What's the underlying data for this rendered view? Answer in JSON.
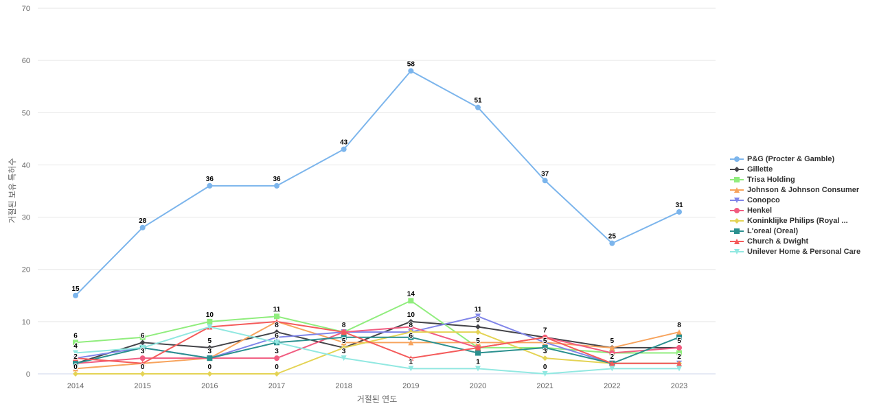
{
  "chart_data": {
    "type": "line",
    "x": [
      2014,
      2015,
      2016,
      2017,
      2018,
      2019,
      2020,
      2021,
      2022,
      2023
    ],
    "xlabel": "거절된 연도",
    "ylabel": "거절된 보유 특허수",
    "ylim": [
      0,
      70
    ],
    "yticks": [
      0,
      10,
      20,
      30,
      40,
      50,
      60,
      70
    ],
    "grid": true,
    "legend_position": "right",
    "grid_color": "#e6e6e6",
    "axis_line_color": "#ccd6eb",
    "tick_label_color": "#666666",
    "data_label_color": "#000000",
    "series": [
      {
        "name": "P&G (Procter & Gamble)",
        "color": "#7cb5ec",
        "marker": "circle",
        "values": [
          15,
          28,
          36,
          36,
          43,
          58,
          51,
          37,
          25,
          31
        ],
        "labels_visible": [
          1,
          1,
          1,
          1,
          1,
          1,
          1,
          1,
          1,
          1
        ]
      },
      {
        "name": "Gillette",
        "color": "#434348",
        "marker": "diamond",
        "values": [
          2,
          6,
          5,
          8,
          5,
          10,
          9,
          7,
          5,
          5
        ],
        "labels_visible": [
          1,
          1,
          1,
          1,
          1,
          1,
          1,
          0,
          1,
          0
        ]
      },
      {
        "name": "Trisa Holding",
        "color": "#90ed7d",
        "marker": "square",
        "values": [
          6,
          7,
          10,
          11,
          8,
          14,
          5,
          5,
          4,
          4
        ],
        "labels_visible": [
          1,
          0,
          1,
          1,
          0,
          1,
          1,
          0,
          0,
          0
        ]
      },
      {
        "name": "Johnson & Johnson Consumer",
        "color": "#f7a35c",
        "marker": "triangle",
        "values": [
          1,
          2,
          3,
          10,
          6,
          6,
          6,
          6,
          5,
          8
        ],
        "labels_visible": [
          0,
          0,
          0,
          0,
          0,
          1,
          0,
          0,
          0,
          1
        ]
      },
      {
        "name": "Conopco",
        "color": "#8085e9",
        "marker": "triangle-down",
        "values": [
          3,
          5,
          3,
          7,
          8,
          8,
          11,
          6,
          2,
          2
        ],
        "labels_visible": [
          0,
          0,
          0,
          0,
          0,
          1,
          1,
          0,
          0,
          0
        ]
      },
      {
        "name": "Henkel",
        "color": "#f15c80",
        "marker": "circle",
        "values": [
          2,
          3,
          3,
          3,
          8,
          9,
          5,
          7,
          4,
          5
        ],
        "labels_visible": [
          0,
          1,
          0,
          1,
          0,
          0,
          0,
          1,
          0,
          1
        ]
      },
      {
        "name": "Koninklijke Philips (Royal ...",
        "color": "#e4d354",
        "marker": "diamond",
        "values": [
          0,
          0,
          0,
          0,
          5,
          8,
          8,
          3,
          2,
          2
        ],
        "labels_visible": [
          1,
          1,
          1,
          1,
          0,
          0,
          0,
          1,
          0,
          0
        ]
      },
      {
        "name": "L'oreal (Oreal)",
        "color": "#2b908f",
        "marker": "square",
        "values": [
          2,
          5,
          3,
          6,
          7,
          7,
          4,
          5,
          2,
          7
        ],
        "labels_visible": [
          0,
          0,
          1,
          1,
          0,
          0,
          0,
          1,
          1,
          0
        ]
      },
      {
        "name": "Church & Dwight",
        "color": "#f45b5b",
        "marker": "triangle",
        "values": [
          3,
          2,
          9,
          10,
          8,
          3,
          5,
          7,
          2,
          2
        ],
        "labels_visible": [
          0,
          0,
          0,
          0,
          1,
          0,
          0,
          0,
          0,
          1
        ]
      },
      {
        "name": "Unilever Home & Personal Care",
        "color": "#91e8e1",
        "marker": "triangle-down",
        "values": [
          4,
          5,
          9,
          6,
          3,
          1,
          1,
          0,
          1,
          1
        ],
        "labels_visible": [
          1,
          0,
          0,
          0,
          1,
          1,
          1,
          1,
          0,
          0
        ]
      }
    ]
  }
}
